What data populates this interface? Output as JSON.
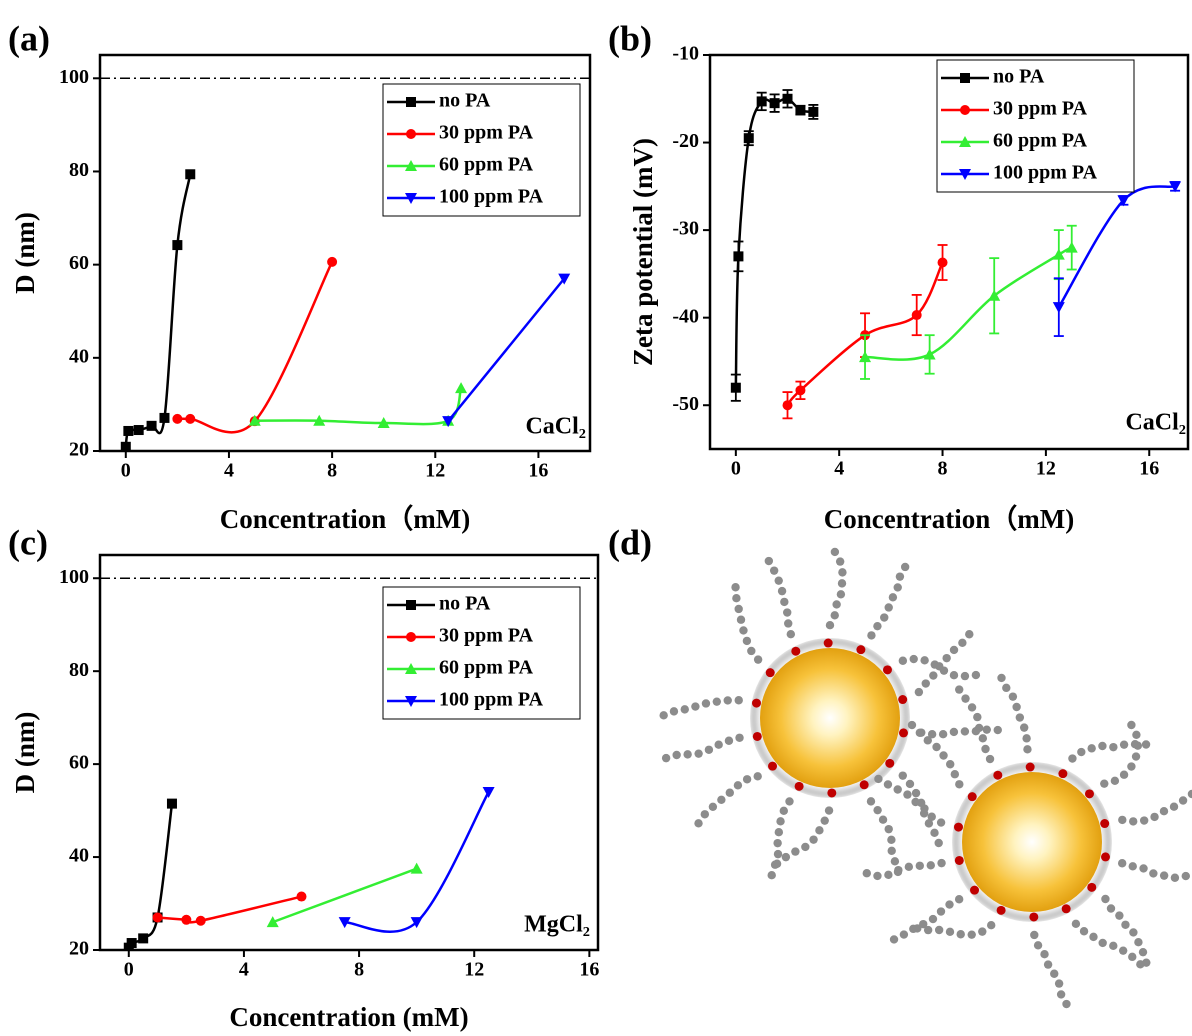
{
  "chart_data": [
    {
      "type": "line",
      "panel_label": "(a)",
      "xlabel": "Concentration（mM)",
      "ylabel": "D (nm)",
      "xlim": [
        -1,
        18
      ],
      "ylim": [
        20,
        105
      ],
      "xticks": [
        0,
        4,
        8,
        12,
        16
      ],
      "yticks": [
        20,
        40,
        60,
        80,
        100
      ],
      "reference_line": 100,
      "legend": "upper right",
      "annotation": "CaCl₂",
      "series": [
        {
          "name": "no PA",
          "color": "#000000",
          "marker": "square",
          "x": [
            0,
            0.1,
            0.5,
            1,
            1.5,
            2,
            2.5
          ],
          "values": [
            20.9,
            24.3,
            24.5,
            25.4,
            27.1,
            64.2,
            79.4
          ]
        },
        {
          "name": "30 ppm PA",
          "color": "#ff0000",
          "marker": "circle",
          "x": [
            2,
            2.5,
            5,
            8
          ],
          "values": [
            26.9,
            26.9,
            26.4,
            60.6
          ]
        },
        {
          "name": "60 ppm PA",
          "color": "#33ee33",
          "marker": "triangle-up",
          "x": [
            5,
            7.5,
            10,
            12.5,
            13
          ],
          "values": [
            26.5,
            26.5,
            26,
            26.5,
            33.5
          ]
        },
        {
          "name": "100 ppm PA",
          "color": "#0000ff",
          "marker": "triangle-down",
          "x": [
            12.5,
            17
          ],
          "values": [
            26.4,
            57
          ]
        }
      ]
    },
    {
      "type": "line",
      "panel_label": "(b)",
      "xlabel": "Concentration（mM)",
      "ylabel": "Zeta potential (mV)",
      "xlim": [
        -1,
        17.5
      ],
      "ylim": [
        -55,
        -10
      ],
      "xticks": [
        0,
        4,
        8,
        12,
        16
      ],
      "yticks": [
        -50,
        -40,
        -30,
        -20,
        -10
      ],
      "legend": "upper right",
      "annotation": "CaCl₂",
      "series": [
        {
          "name": "no PA",
          "color": "#000000",
          "marker": "square",
          "x": [
            0,
            0.1,
            0.5,
            1,
            1.5,
            2,
            2.5,
            3
          ],
          "values": [
            -48,
            -33,
            -19.5,
            -15.3,
            -15.5,
            -15,
            -16.3,
            -16.5
          ],
          "errors": [
            1.5,
            1.7,
            0.8,
            1,
            1,
            1,
            0.5,
            0.8
          ]
        },
        {
          "name": "30 ppm PA",
          "color": "#ff0000",
          "marker": "circle",
          "x": [
            2,
            2.5,
            5,
            7,
            8
          ],
          "values": [
            -50,
            -48.3,
            -42,
            -39.7,
            -33.7
          ],
          "errors": [
            1.5,
            1,
            2.5,
            2.3,
            2
          ]
        },
        {
          "name": "60 ppm PA",
          "color": "#33ee33",
          "marker": "triangle-up",
          "x": [
            5,
            7.5,
            10,
            12.5,
            13
          ],
          "values": [
            -44.5,
            -44.2,
            -37.5,
            -32.8,
            -32
          ],
          "errors": [
            2.5,
            2.2,
            4.3,
            2.8,
            2.5
          ]
        },
        {
          "name": "100 ppm PA",
          "color": "#0000ff",
          "marker": "triangle-down",
          "x": [
            12.5,
            15,
            17
          ],
          "values": [
            -38.8,
            -26.6,
            -25
          ],
          "errors": [
            3.3,
            0.5,
            0.5
          ]
        }
      ]
    },
    {
      "type": "line",
      "panel_label": "(c)",
      "xlabel": "Concentration (mM)",
      "ylabel": "D (nm)",
      "xlim": [
        -1,
        16.3
      ],
      "ylim": [
        20,
        105
      ],
      "xticks": [
        0,
        4,
        8,
        12,
        16
      ],
      "yticks": [
        20,
        40,
        60,
        80,
        100
      ],
      "reference_line": 100,
      "legend": "upper right",
      "annotation": "MgCl₂",
      "series": [
        {
          "name": "no PA",
          "color": "#000000",
          "marker": "square",
          "x": [
            0,
            0.1,
            0.5,
            1,
            1.5
          ],
          "values": [
            20.5,
            21.5,
            22.5,
            27,
            51.5
          ]
        },
        {
          "name": "30 ppm PA",
          "color": "#ff0000",
          "marker": "circle",
          "x": [
            1,
            2,
            2.5,
            6
          ],
          "values": [
            27,
            26.5,
            26.3,
            31.5
          ]
        },
        {
          "name": "60 ppm PA",
          "color": "#33ee33",
          "marker": "triangle-up",
          "x": [
            5,
            10
          ],
          "values": [
            26,
            37.5
          ]
        },
        {
          "name": "100 ppm PA",
          "color": "#0000ff",
          "marker": "triangle-down",
          "x": [
            7.5,
            10,
            12.5
          ],
          "values": [
            26,
            26,
            54
          ]
        }
      ]
    }
  ],
  "diagram": {
    "label": "(d)"
  }
}
